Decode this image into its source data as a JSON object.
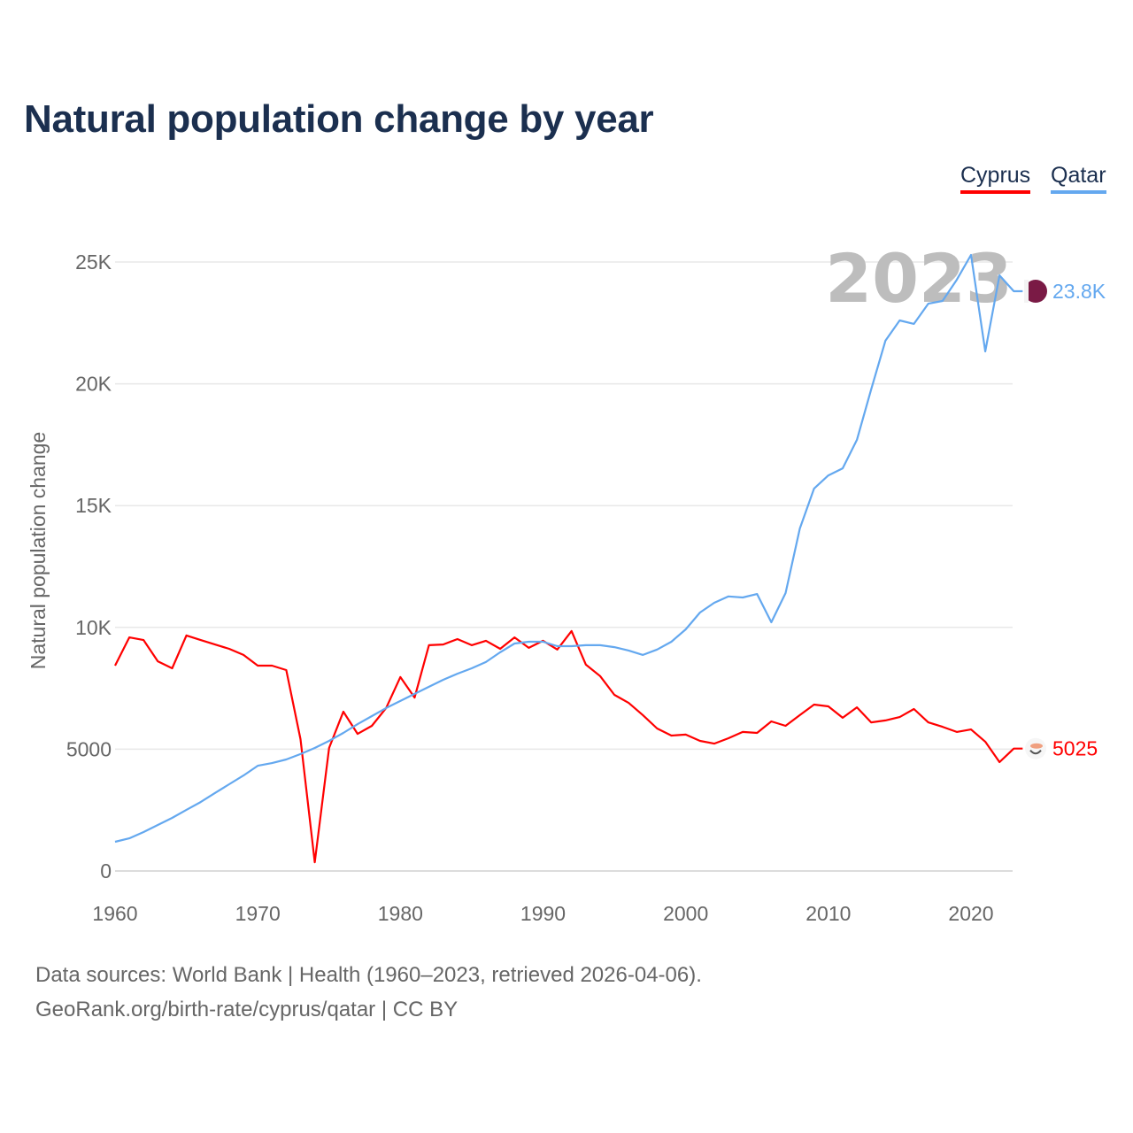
{
  "title": "Natural population change by year",
  "legend": [
    {
      "name": "Cyprus",
      "color": "#ff0000"
    },
    {
      "name": "Qatar",
      "color": "#64a8ef"
    }
  ],
  "footer": {
    "line1": "Data sources: World Bank | Health (1960–2023, retrieved 2026-04-06).",
    "line2": "GeoRank.org/birth-rate/cyprus/qatar | CC BY"
  },
  "chart_data": {
    "type": "line",
    "title": "Natural population change by year",
    "xlabel": "",
    "ylabel": "Natural population change",
    "xlim": [
      1960,
      2023
    ],
    "ylim": [
      0,
      26000
    ],
    "x_ticks": [
      1960,
      1970,
      1980,
      1990,
      2000,
      2010,
      2020
    ],
    "x_tick_labels": [
      "1960",
      "1970",
      "1980",
      "1990",
      "2000",
      "2010",
      "2020"
    ],
    "y_ticks": [
      0,
      5000,
      10000,
      15000,
      20000,
      25000
    ],
    "y_tick_labels": [
      "0",
      "5000",
      "10K",
      "15K",
      "20K",
      "25K"
    ],
    "grid": true,
    "legend_position": "top-right",
    "year_label": "2023",
    "x": [
      1960,
      1961,
      1962,
      1963,
      1964,
      1965,
      1966,
      1967,
      1968,
      1969,
      1970,
      1971,
      1972,
      1973,
      1974,
      1975,
      1976,
      1977,
      1978,
      1979,
      1980,
      1981,
      1982,
      1983,
      1984,
      1985,
      1986,
      1987,
      1988,
      1989,
      1990,
      1991,
      1992,
      1993,
      1994,
      1995,
      1996,
      1997,
      1998,
      1999,
      2000,
      2001,
      2002,
      2003,
      2004,
      2005,
      2006,
      2007,
      2008,
      2009,
      2010,
      2011,
      2012,
      2013,
      2014,
      2015,
      2016,
      2017,
      2018,
      2019,
      2020,
      2021,
      2022,
      2023
    ],
    "series": [
      {
        "name": "Cyprus",
        "color": "#ff0000",
        "end_label": "5025",
        "values": [
          8430,
          9590,
          9480,
          8610,
          8320,
          9670,
          9480,
          9300,
          9120,
          8870,
          8430,
          8430,
          8250,
          5410,
          360,
          5050,
          6540,
          5630,
          5960,
          6690,
          7960,
          7120,
          9270,
          9300,
          9520,
          9270,
          9450,
          9120,
          9590,
          9160,
          9450,
          9090,
          9850,
          8470,
          8000,
          7230,
          6900,
          6400,
          5850,
          5560,
          5600,
          5340,
          5230,
          5450,
          5710,
          5670,
          6140,
          5960,
          6400,
          6830,
          6760,
          6290,
          6720,
          6100,
          6180,
          6320,
          6650,
          6100,
          5920,
          5710,
          5810,
          5310,
          4470,
          5025
        ]
      },
      {
        "name": "Qatar",
        "color": "#64a8ef",
        "end_label": "23.8K",
        "values": [
          1200,
          1340,
          1600,
          1890,
          2180,
          2510,
          2830,
          3200,
          3560,
          3920,
          4320,
          4430,
          4580,
          4800,
          5050,
          5340,
          5670,
          6030,
          6360,
          6690,
          6980,
          7270,
          7560,
          7850,
          8100,
          8320,
          8580,
          8980,
          9340,
          9410,
          9410,
          9230,
          9230,
          9270,
          9270,
          9190,
          9050,
          8870,
          9090,
          9410,
          9920,
          10610,
          11010,
          11270,
          11230,
          11370,
          10210,
          11410,
          14060,
          15700,
          16240,
          16530,
          17700,
          19770,
          21770,
          22600,
          22460,
          23290,
          23400,
          24270,
          25290,
          21330,
          24450,
          23800
        ]
      }
    ]
  }
}
